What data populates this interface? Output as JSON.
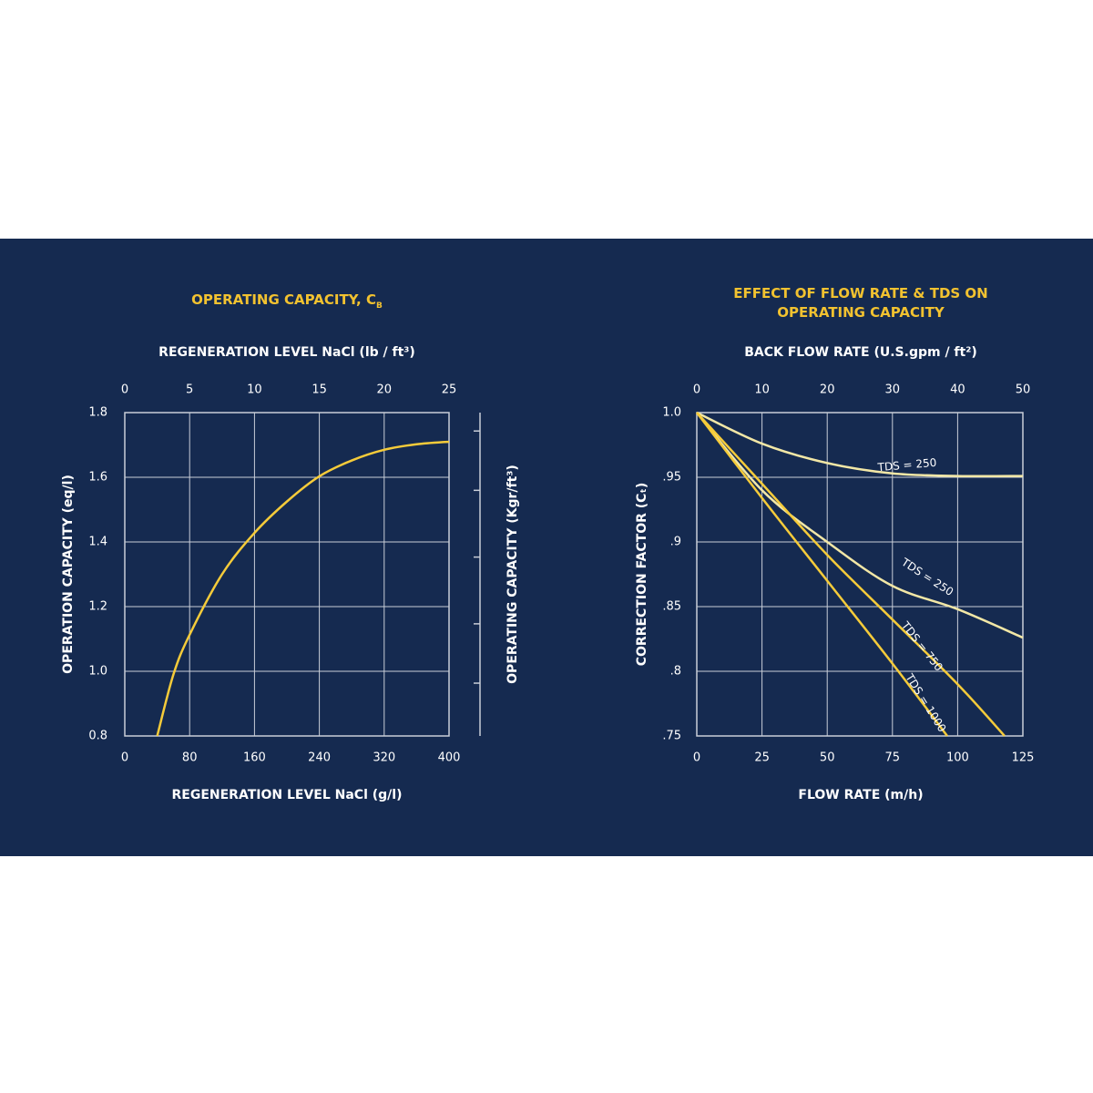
{
  "chart_data": [
    {
      "type": "line",
      "title": "OPERATING CAPACITY, C",
      "title_subscript": "B",
      "xlabel": "REGENERATION LEVEL NaCl (g/l)",
      "x2label": "REGENERATION LEVEL NaCl (lb / ft³)",
      "ylabel": "OPERATION CAPACITY (eq/l)",
      "y2label": "OPERATING CAPACITY (Kgr/ft³)",
      "xlim": [
        0,
        400
      ],
      "xticks": [
        0,
        80,
        160,
        240,
        320,
        400
      ],
      "x2lim": [
        0,
        25
      ],
      "x2ticks": [
        0,
        5,
        10,
        15,
        20,
        25
      ],
      "ylim": [
        0.8,
        1.8
      ],
      "yticks": [
        0.8,
        {
          "value": 1,
          "label": "1.0"
        },
        1.2,
        1.4,
        1.6,
        1.8
      ],
      "y2lim": [
        17.44,
        39.24
      ],
      "y2ticks": [
        21,
        25,
        29.5,
        34,
        38
      ],
      "y2tick_labels": false,
      "grid": true,
      "series": [
        {
          "color": "#f5cb3a",
          "x": [
            40,
            60,
            80,
            120,
            160,
            200,
            240,
            280,
            320,
            360,
            400
          ],
          "values": [
            0.8,
            0.99,
            1.113,
            1.3,
            1.428,
            1.525,
            1.603,
            1.652,
            1.685,
            1.702,
            1.71
          ]
        }
      ]
    },
    {
      "type": "line",
      "title": "EFFECT OF FLOW RATE & TDS ON OPERATING CAPACITY",
      "xlabel": "FLOW RATE (m/h)",
      "x2label": "BACK FLOW RATE (U.S.gpm / ft²)",
      "ylabel": "CORRECTION FACTOR (Cₜ)",
      "xlim": [
        0,
        125
      ],
      "xticks": [
        0,
        25,
        50,
        75,
        100,
        125
      ],
      "x2lim": [
        0,
        50
      ],
      "x2ticks": [
        0,
        10,
        20,
        30,
        40,
        50
      ],
      "ylim": [
        0.75,
        1.0
      ],
      "yticks": [
        {
          "value": 0.75,
          "label": ".75"
        },
        {
          "value": 0.8,
          "label": ".8"
        },
        {
          "value": 0.85,
          "label": ".85"
        },
        {
          "value": 0.9,
          "label": ".9"
        },
        {
          "value": 0.95,
          "label": ".95"
        },
        {
          "value": 1,
          "label": "1.0"
        }
      ],
      "grid": true,
      "series": [
        {
          "name": "TDS = 250",
          "color": "#f2e7a6",
          "x": [
            0,
            25,
            50,
            75,
            100,
            125
          ],
          "values": [
            1.0,
            0.976,
            0.961,
            0.953,
            0.951,
            0.951
          ]
        },
        {
          "name": "TDS = 250",
          "color": "#f2e7a6",
          "x": [
            0,
            25,
            50,
            75,
            100,
            125
          ],
          "values": [
            1.0,
            0.94,
            0.9,
            0.866,
            0.848,
            0.826
          ]
        },
        {
          "name": "TDS = 750",
          "color": "#f5cb3a",
          "x": [
            0,
            25,
            50,
            75,
            100,
            118
          ],
          "values": [
            1.0,
            0.945,
            0.89,
            0.84,
            0.79,
            0.75
          ]
        },
        {
          "name": "TDS = 1000",
          "color": "#f5cb3a",
          "x": [
            0,
            25,
            50,
            75,
            96
          ],
          "values": [
            1.0,
            0.934,
            0.87,
            0.806,
            0.75
          ]
        }
      ]
    }
  ]
}
